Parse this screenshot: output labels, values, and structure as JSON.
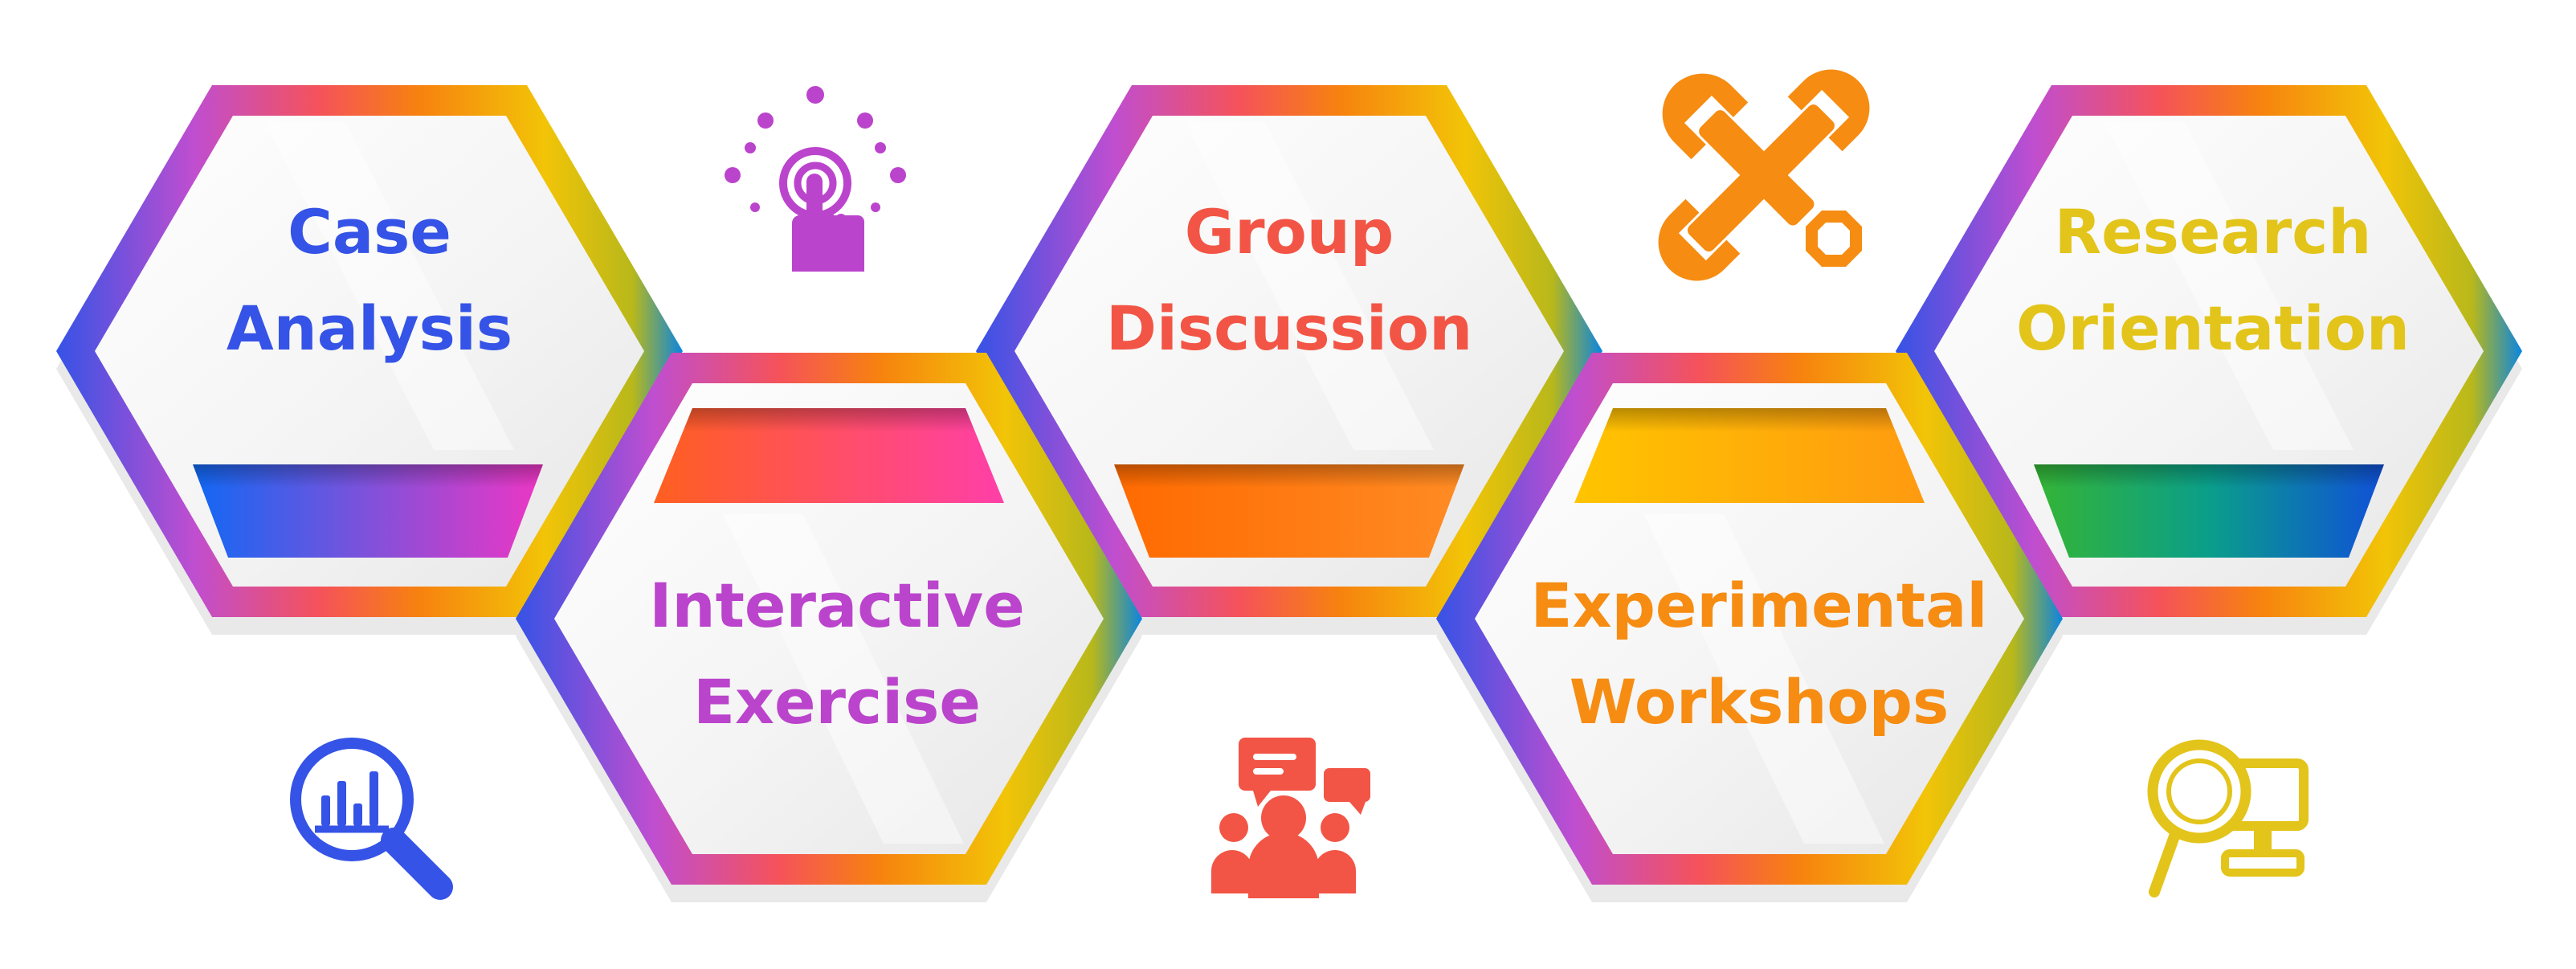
{
  "steps": [
    {
      "line1": "Case",
      "line2": "Analysis",
      "color": "#3553e6",
      "icon": "analysis-magnifier-icon"
    },
    {
      "line1": "Interactive",
      "line2": "Exercise",
      "color": "#bb44cc",
      "icon": "touch-tap-icon"
    },
    {
      "line1": "Group",
      "line2": "Discussion",
      "color": "#f25545",
      "icon": "discussion-group-icon"
    },
    {
      "line1": "Experimental",
      "line2": "Workshops",
      "color": "#f68c12",
      "icon": "wrench-tools-icon"
    },
    {
      "line1": "Research",
      "line2": "Orientation",
      "color": "#e3c41a",
      "icon": "research-computer-icon"
    }
  ],
  "colors": {
    "blue": "#3553e6",
    "purple": "#bb44cc",
    "pink": "#ff4aa0",
    "red": "#f25545",
    "orange": "#f68c12",
    "yellow": "#e8c91a",
    "teal": "#0a85e0",
    "green": "#31b838"
  }
}
